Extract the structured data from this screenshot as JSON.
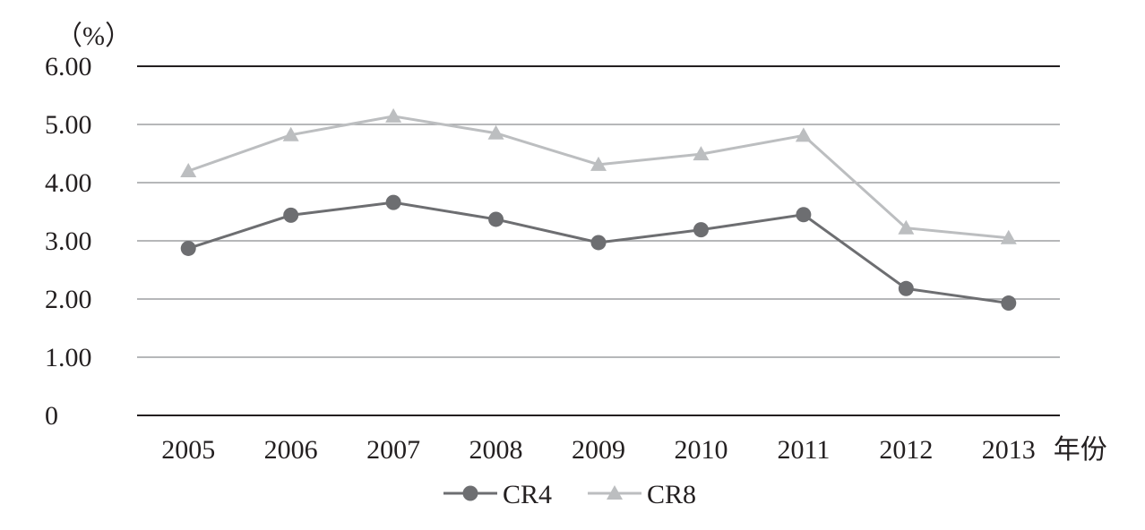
{
  "chart_data": {
    "type": "line",
    "ylabel": "（%）",
    "xlabel_suffix": "年份",
    "categories": [
      "2005",
      "2006",
      "2007",
      "2008",
      "2009",
      "2010",
      "2011",
      "2012",
      "2013"
    ],
    "ylim": [
      0,
      6
    ],
    "yticks": [
      "0",
      "1.00",
      "2.00",
      "3.00",
      "4.00",
      "5.00",
      "6.00"
    ],
    "grid": true,
    "legend_position": "bottom",
    "series": [
      {
        "name": "CR4",
        "marker": "circle",
        "color": "#6d6e71",
        "values": [
          2.87,
          3.44,
          3.66,
          3.37,
          2.97,
          3.19,
          3.45,
          2.18,
          1.93
        ]
      },
      {
        "name": "CR8",
        "marker": "triangle",
        "color": "#bcbec0",
        "values": [
          4.2,
          4.82,
          5.14,
          4.85,
          4.31,
          4.49,
          4.81,
          3.22,
          3.05
        ]
      }
    ]
  }
}
